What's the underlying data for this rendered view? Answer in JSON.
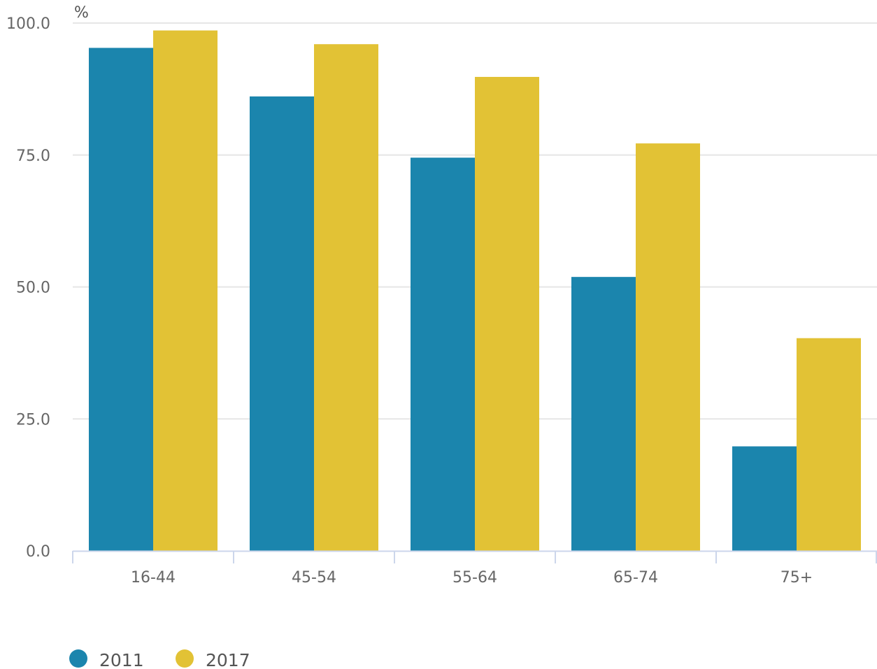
{
  "chart_data": {
    "type": "bar",
    "title": "",
    "xlabel": "",
    "ylabel": "%",
    "categories": [
      "16-44",
      "45-54",
      "55-64",
      "65-74",
      "75+"
    ],
    "series": [
      {
        "name": "2011",
        "color": "#1b85ad",
        "values": [
          95.3,
          86.1,
          74.5,
          51.9,
          19.8
        ]
      },
      {
        "name": "2017",
        "color": "#e2c235",
        "values": [
          98.6,
          96.0,
          89.8,
          77.2,
          40.3
        ]
      }
    ],
    "ylim": [
      0,
      100
    ],
    "yticks": [
      "0.0",
      "25.0",
      "50.0",
      "75.0",
      "100.0"
    ],
    "grid": true,
    "legend_position": "bottom-left"
  }
}
